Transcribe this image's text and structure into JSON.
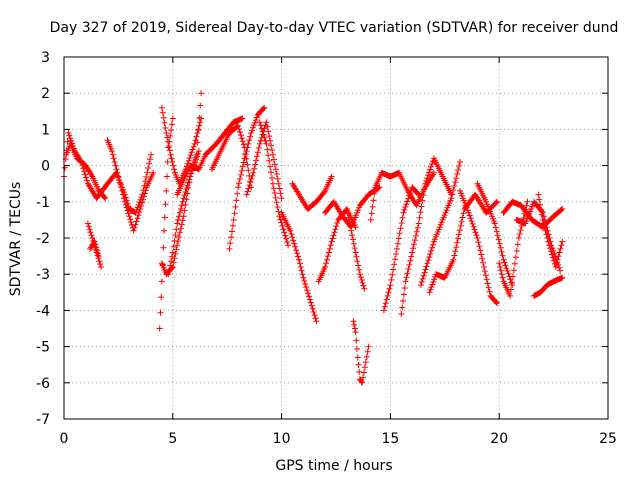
{
  "chart_data": {
    "type": "scatter",
    "title": "Day 327 of 2019, Sidereal Day-to-day VTEC variation (SDTVAR) for receiver dund",
    "xlabel": "GPS time / hours",
    "ylabel": "SDTVAR / TECUs",
    "xlim": [
      0,
      25
    ],
    "ylim": [
      -7,
      3
    ],
    "xticks": [
      0,
      5,
      10,
      15,
      20,
      25
    ],
    "yticks": [
      -7,
      -6,
      -5,
      -4,
      -3,
      -2,
      -1,
      0,
      1,
      2,
      3
    ],
    "grid": true,
    "marker": "+",
    "marker_color": "#ff0000",
    "segments": [
      {
        "name": "arc-1",
        "x": [
          0.0,
          0.2,
          0.5,
          0.8,
          1.1,
          1.5,
          2.0,
          2.4,
          2.8,
          3.0,
          3.3,
          3.6,
          4.0
        ],
        "y": [
          -0.3,
          0.9,
          0.4,
          0.1,
          -0.5,
          -0.9,
          -0.5,
          -0.2,
          -0.8,
          -1.2,
          -1.3,
          -0.8,
          0.3
        ]
      },
      {
        "name": "arc-2",
        "x": [
          0.1,
          0.3,
          0.6,
          1.0,
          1.3,
          1.6,
          1.9
        ],
        "y": [
          0.3,
          0.6,
          0.2,
          0.0,
          -0.3,
          -0.7,
          -0.9
        ]
      },
      {
        "name": "arc-3",
        "x": [
          2.0,
          2.2,
          2.5,
          2.8,
          3.0,
          3.2,
          3.5,
          3.8,
          4.1
        ],
        "y": [
          0.7,
          0.4,
          -0.3,
          -1.0,
          -1.4,
          -1.8,
          -1.2,
          -0.6,
          -0.2
        ]
      },
      {
        "name": "arc-4",
        "x": [
          1.1,
          1.3,
          1.5,
          1.7
        ],
        "y": [
          -1.6,
          -2.0,
          -2.4,
          -2.8
        ]
      },
      {
        "name": "arc-5",
        "x": [
          1.2,
          1.4,
          1.6
        ],
        "y": [
          -2.3,
          -2.1,
          -2.5
        ]
      },
      {
        "name": "arc-6",
        "x": [
          4.4,
          4.5,
          4.6,
          4.7,
          4.8,
          5.0
        ],
        "y": [
          -4.5,
          -3.2,
          -1.8,
          -0.7,
          0.5,
          1.3
        ]
      },
      {
        "name": "arc-7",
        "x": [
          4.5,
          4.7,
          4.9,
          5.1,
          5.3,
          5.6,
          6.0,
          6.3
        ],
        "y": [
          1.6,
          0.9,
          0.3,
          -0.2,
          -0.5,
          -0.1,
          0.6,
          1.3
        ]
      },
      {
        "name": "arc-8",
        "x": [
          4.5,
          4.7,
          5.0,
          5.2,
          5.5,
          5.8,
          6.2
        ],
        "y": [
          -2.7,
          -3.0,
          -2.8,
          -2.2,
          -1.4,
          -0.3,
          0.4
        ]
      },
      {
        "name": "arc-9",
        "x": [
          4.8,
          5.0,
          5.2,
          5.5,
          5.8,
          6.1,
          6.3
        ],
        "y": [
          -3.0,
          -2.4,
          -1.6,
          -0.9,
          -0.3,
          0.3,
          2.0
        ]
      },
      {
        "name": "arc-10",
        "x": [
          5.2,
          5.5,
          5.8,
          6.2,
          6.5,
          7.0,
          7.4,
          7.8,
          8.2
        ],
        "y": [
          -0.8,
          -0.4,
          0.0,
          -0.1,
          0.3,
          0.6,
          0.9,
          1.2,
          1.3
        ]
      },
      {
        "name": "arc-11",
        "x": [
          7.6,
          7.8,
          8.0,
          8.3,
          8.6,
          8.9,
          9.2
        ],
        "y": [
          -2.3,
          -1.5,
          -0.6,
          0.2,
          0.9,
          1.4,
          1.6
        ]
      },
      {
        "name": "arc-12",
        "x": [
          6.8,
          7.2,
          7.6,
          8.0,
          8.3,
          8.6
        ],
        "y": [
          -0.1,
          0.4,
          0.9,
          1.1,
          0.5,
          -0.6
        ]
      },
      {
        "name": "arc-13",
        "x": [
          8.4,
          8.7,
          9.0,
          9.3,
          9.6,
          10.0
        ],
        "y": [
          -0.8,
          -0.2,
          0.6,
          1.2,
          0.3,
          -0.9
        ]
      },
      {
        "name": "arc-14",
        "x": [
          9.0,
          9.3,
          9.6,
          9.9,
          10.3
        ],
        "y": [
          1.2,
          0.6,
          -0.5,
          -1.4,
          -2.2
        ]
      },
      {
        "name": "arc-15",
        "x": [
          10.0,
          10.4,
          10.8,
          11.0,
          11.3,
          11.6
        ],
        "y": [
          -1.3,
          -1.8,
          -2.6,
          -3.1,
          -3.7,
          -4.3
        ]
      },
      {
        "name": "arc-16",
        "x": [
          10.5,
          10.8,
          11.2,
          11.6,
          12.0,
          12.3
        ],
        "y": [
          -0.5,
          -0.8,
          -1.2,
          -1.0,
          -0.7,
          -0.3
        ]
      },
      {
        "name": "arc-17",
        "x": [
          11.7,
          12.0,
          12.3,
          12.6,
          13.0,
          13.4
        ],
        "y": [
          -3.2,
          -2.8,
          -2.1,
          -1.5,
          -1.2,
          -1.7
        ]
      },
      {
        "name": "arc-18",
        "x": [
          12.0,
          12.4,
          12.8,
          13.2,
          13.6,
          14.0,
          14.5
        ],
        "y": [
          -1.3,
          -1.0,
          -1.4,
          -1.7,
          -1.1,
          -0.8,
          -0.6
        ]
      },
      {
        "name": "arc-19",
        "x": [
          13.0,
          13.2,
          13.4,
          13.6,
          13.8
        ],
        "y": [
          -1.2,
          -1.8,
          -2.4,
          -3.0,
          -3.4
        ]
      },
      {
        "name": "arc-20",
        "x": [
          13.3,
          13.4,
          13.5,
          13.6,
          13.7,
          14.0
        ],
        "y": [
          -4.3,
          -4.6,
          -5.3,
          -5.9,
          -6.0,
          -5.0
        ]
      },
      {
        "name": "arc-21",
        "x": [
          14.1,
          14.3,
          14.6,
          15.0,
          15.4,
          15.8,
          16.2,
          16.6,
          17.0
        ],
        "y": [
          -1.5,
          -0.6,
          -0.2,
          -0.3,
          -0.2,
          -0.7,
          -1.1,
          -0.6,
          -0.2
        ]
      },
      {
        "name": "arc-22",
        "x": [
          15.5,
          15.7,
          16.0,
          16.3,
          16.6,
          17.0,
          17.4,
          17.8
        ],
        "y": [
          -4.1,
          -3.2,
          -2.4,
          -1.6,
          -0.5,
          0.2,
          -0.3,
          -0.8
        ]
      },
      {
        "name": "arc-23",
        "x": [
          14.7,
          15.0,
          15.3,
          15.6,
          16.0,
          16.3
        ],
        "y": [
          -4.0,
          -3.3,
          -2.3,
          -1.3,
          -0.6,
          -0.8
        ]
      },
      {
        "name": "arc-24",
        "x": [
          16.4,
          16.7,
          17.0,
          17.4,
          17.8,
          18.2
        ],
        "y": [
          -3.3,
          -2.7,
          -2.1,
          -1.5,
          -0.9,
          0.1
        ]
      },
      {
        "name": "arc-25",
        "x": [
          16.8,
          17.1,
          17.5,
          17.9,
          18.4,
          18.9,
          19.4,
          19.9
        ],
        "y": [
          -3.5,
          -3.0,
          -3.1,
          -2.6,
          -1.2,
          -0.8,
          -1.3,
          -1.0
        ]
      },
      {
        "name": "arc-26",
        "x": [
          18.2,
          18.6,
          19.0,
          19.3,
          19.6,
          19.9
        ],
        "y": [
          -0.7,
          -1.3,
          -2.0,
          -2.8,
          -3.6,
          -3.8
        ]
      },
      {
        "name": "arc-27",
        "x": [
          19.0,
          19.4,
          19.8,
          20.2,
          20.6
        ],
        "y": [
          -0.5,
          -1.0,
          -1.6,
          -2.6,
          -3.3
        ]
      },
      {
        "name": "arc-28",
        "x": [
          20.0,
          20.2,
          20.5,
          20.9,
          21.3
        ],
        "y": [
          -2.7,
          -3.2,
          -3.6,
          -2.0,
          -1.0
        ]
      },
      {
        "name": "arc-29",
        "x": [
          20.2,
          20.6,
          21.0,
          21.5,
          22.0,
          22.5,
          22.9
        ],
        "y": [
          -1.3,
          -1.0,
          -1.1,
          -1.5,
          -1.7,
          -1.4,
          -1.2
        ]
      },
      {
        "name": "arc-30",
        "x": [
          20.8,
          21.2,
          21.6,
          22.0,
          22.4,
          22.8
        ],
        "y": [
          -1.5,
          -1.6,
          -1.0,
          -1.3,
          -2.2,
          -2.9
        ]
      },
      {
        "name": "arc-31",
        "x": [
          21.6,
          21.9,
          22.2,
          22.5,
          22.9
        ],
        "y": [
          -3.6,
          -3.5,
          -3.3,
          -3.2,
          -3.1
        ]
      },
      {
        "name": "arc-32",
        "x": [
          21.8,
          22.0,
          22.3,
          22.6,
          22.9
        ],
        "y": [
          -0.8,
          -1.5,
          -2.2,
          -2.8,
          -2.1
        ]
      }
    ]
  }
}
